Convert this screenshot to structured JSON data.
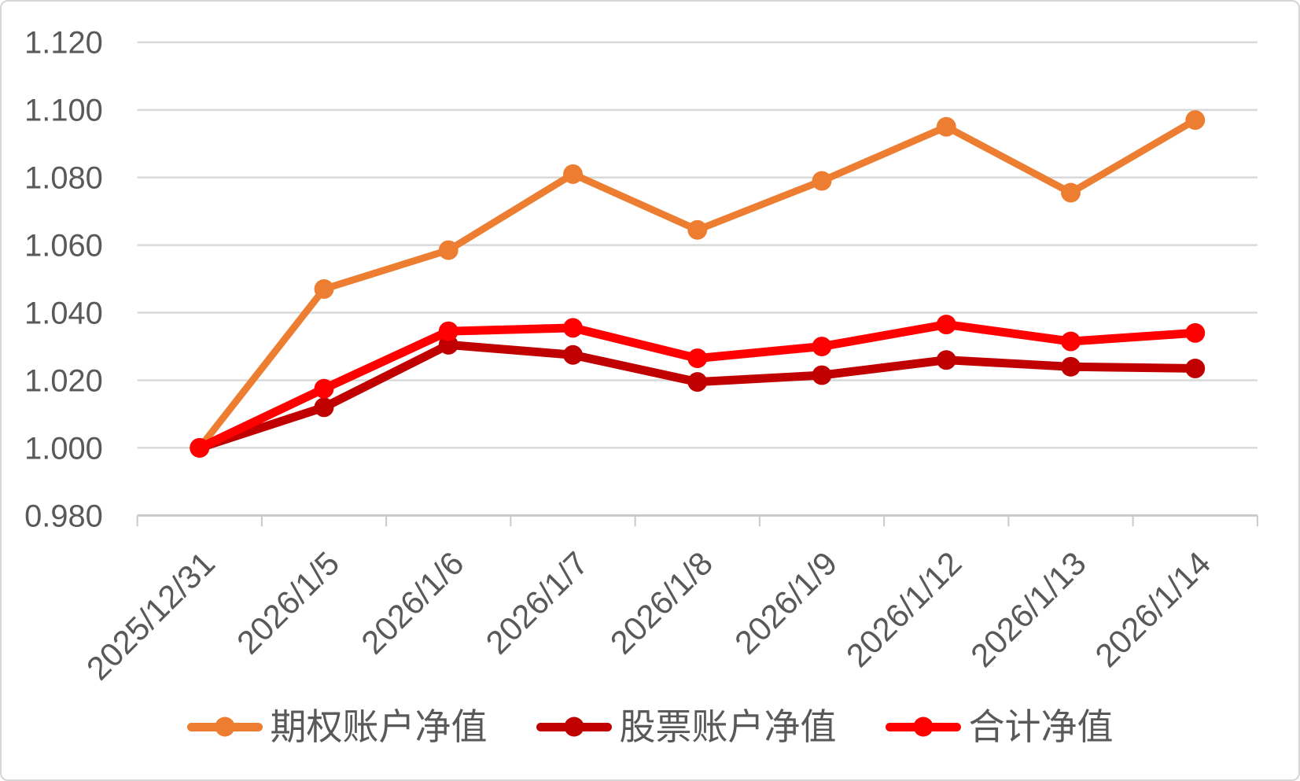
{
  "chart_data": {
    "type": "line",
    "categories": [
      "2025/12/31",
      "2026/1/5",
      "2026/1/6",
      "2026/1/7",
      "2026/1/8",
      "2026/1/9",
      "2026/1/12",
      "2026/1/13",
      "2026/1/14"
    ],
    "series": [
      {
        "name": "期权账户净值",
        "color": "#ED7D31",
        "values": [
          1.0,
          1.047,
          1.0585,
          1.081,
          1.0645,
          1.079,
          1.095,
          1.0755,
          1.097
        ]
      },
      {
        "name": "股票账户净值",
        "color": "#C00000",
        "values": [
          1.0,
          1.012,
          1.0305,
          1.0275,
          1.0195,
          1.0215,
          1.026,
          1.024,
          1.0235
        ]
      },
      {
        "name": "合计净值",
        "color": "#FF0000",
        "values": [
          1.0,
          1.0175,
          1.0345,
          1.0355,
          1.0265,
          1.03,
          1.0365,
          1.0315,
          1.034
        ]
      }
    ],
    "title": "",
    "xlabel": "",
    "ylabel": "",
    "ylim": [
      0.98,
      1.12
    ],
    "ytick_step": 0.02,
    "ytick_labels": [
      "0.980",
      "1.000",
      "1.020",
      "1.040",
      "1.060",
      "1.080",
      "1.100",
      "1.120"
    ],
    "grid": "horizontal",
    "legend_position": "bottom",
    "colors": {
      "grid_line": "#D9D9D9",
      "axis_line": "#C9C9C9",
      "tick_mark": "#C9C9C9",
      "axis_label": "#595959",
      "background": "#FFFFFF",
      "border": "#D6D6D6"
    }
  }
}
